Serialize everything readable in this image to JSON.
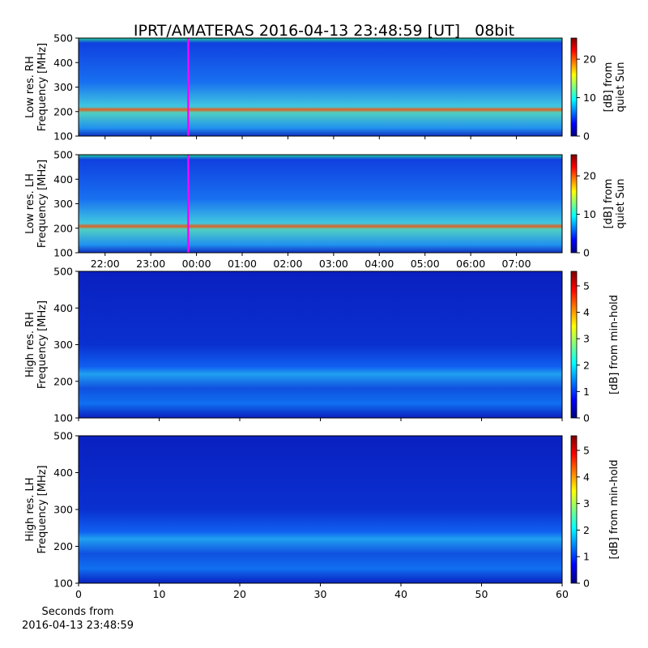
{
  "chart_data": [
    {
      "type": "heatmap",
      "title": "IPRT/AMATERAS 2016-04-13 23:48:59 [UT]   08bit",
      "ylabel": [
        "Low res. RH",
        "Frequency [MHz]"
      ],
      "ylim": [
        100,
        500
      ],
      "yticks": [
        100,
        200,
        300,
        400,
        500
      ],
      "xlim": [
        21.42,
        32.0
      ],
      "sharex": true,
      "marker_x": 23.82,
      "marker_color": "#ff00ff",
      "colorbar": {
        "label": [
          "[dB] from",
          "quiet Sun"
        ],
        "lim": [
          0,
          25.5
        ],
        "ticks": [
          0,
          10,
          20
        ]
      }
    },
    {
      "type": "heatmap",
      "ylabel": [
        "Low res. LH",
        "Frequency [MHz]"
      ],
      "ylim": [
        100,
        500
      ],
      "yticks": [
        100,
        200,
        300,
        400,
        500
      ],
      "xlim": [
        21.42,
        32.0
      ],
      "xticks": [
        {
          "value": 22,
          "label": "22:00"
        },
        {
          "value": 23,
          "label": "23:00"
        },
        {
          "value": 24,
          "label": "00:00"
        },
        {
          "value": 25,
          "label": "01:00"
        },
        {
          "value": 26,
          "label": "02:00"
        },
        {
          "value": 27,
          "label": "03:00"
        },
        {
          "value": 28,
          "label": "04:00"
        },
        {
          "value": 29,
          "label": "05:00"
        },
        {
          "value": 30,
          "label": "06:00"
        },
        {
          "value": 31,
          "label": "07:00"
        }
      ],
      "marker_x": 23.82,
      "marker_color": "#ff00ff",
      "colorbar": {
        "label": [
          "[dB] from",
          "quiet Sun"
        ],
        "lim": [
          0,
          25.5
        ],
        "ticks": [
          0,
          10,
          20
        ]
      }
    },
    {
      "type": "heatmap",
      "ylabel": [
        "High res. RH",
        "Frequency [MHz]"
      ],
      "ylim": [
        100,
        500
      ],
      "yticks": [
        100,
        200,
        300,
        400,
        500
      ],
      "xlim": [
        0,
        60
      ],
      "sharex": true,
      "colorbar": {
        "label": [
          "[dB] from min-hold"
        ],
        "lim": [
          0,
          5.55
        ],
        "ticks": [
          0,
          1,
          2,
          3,
          4,
          5
        ]
      }
    },
    {
      "type": "heatmap",
      "ylabel": [
        "High res. LH",
        "Frequency [MHz]"
      ],
      "ylim": [
        100,
        500
      ],
      "yticks": [
        100,
        200,
        300,
        400,
        500
      ],
      "xlim": [
        0,
        60
      ],
      "xticks": [
        0,
        10,
        20,
        30,
        40,
        50,
        60
      ],
      "xlabel": [
        "Seconds from",
        "2016-04-13 23:48:59"
      ],
      "colorbar": {
        "label": [
          "[dB] from min-hold"
        ],
        "lim": [
          0,
          5.55
        ],
        "ticks": [
          0,
          1,
          2,
          3,
          4,
          5
        ]
      }
    }
  ]
}
